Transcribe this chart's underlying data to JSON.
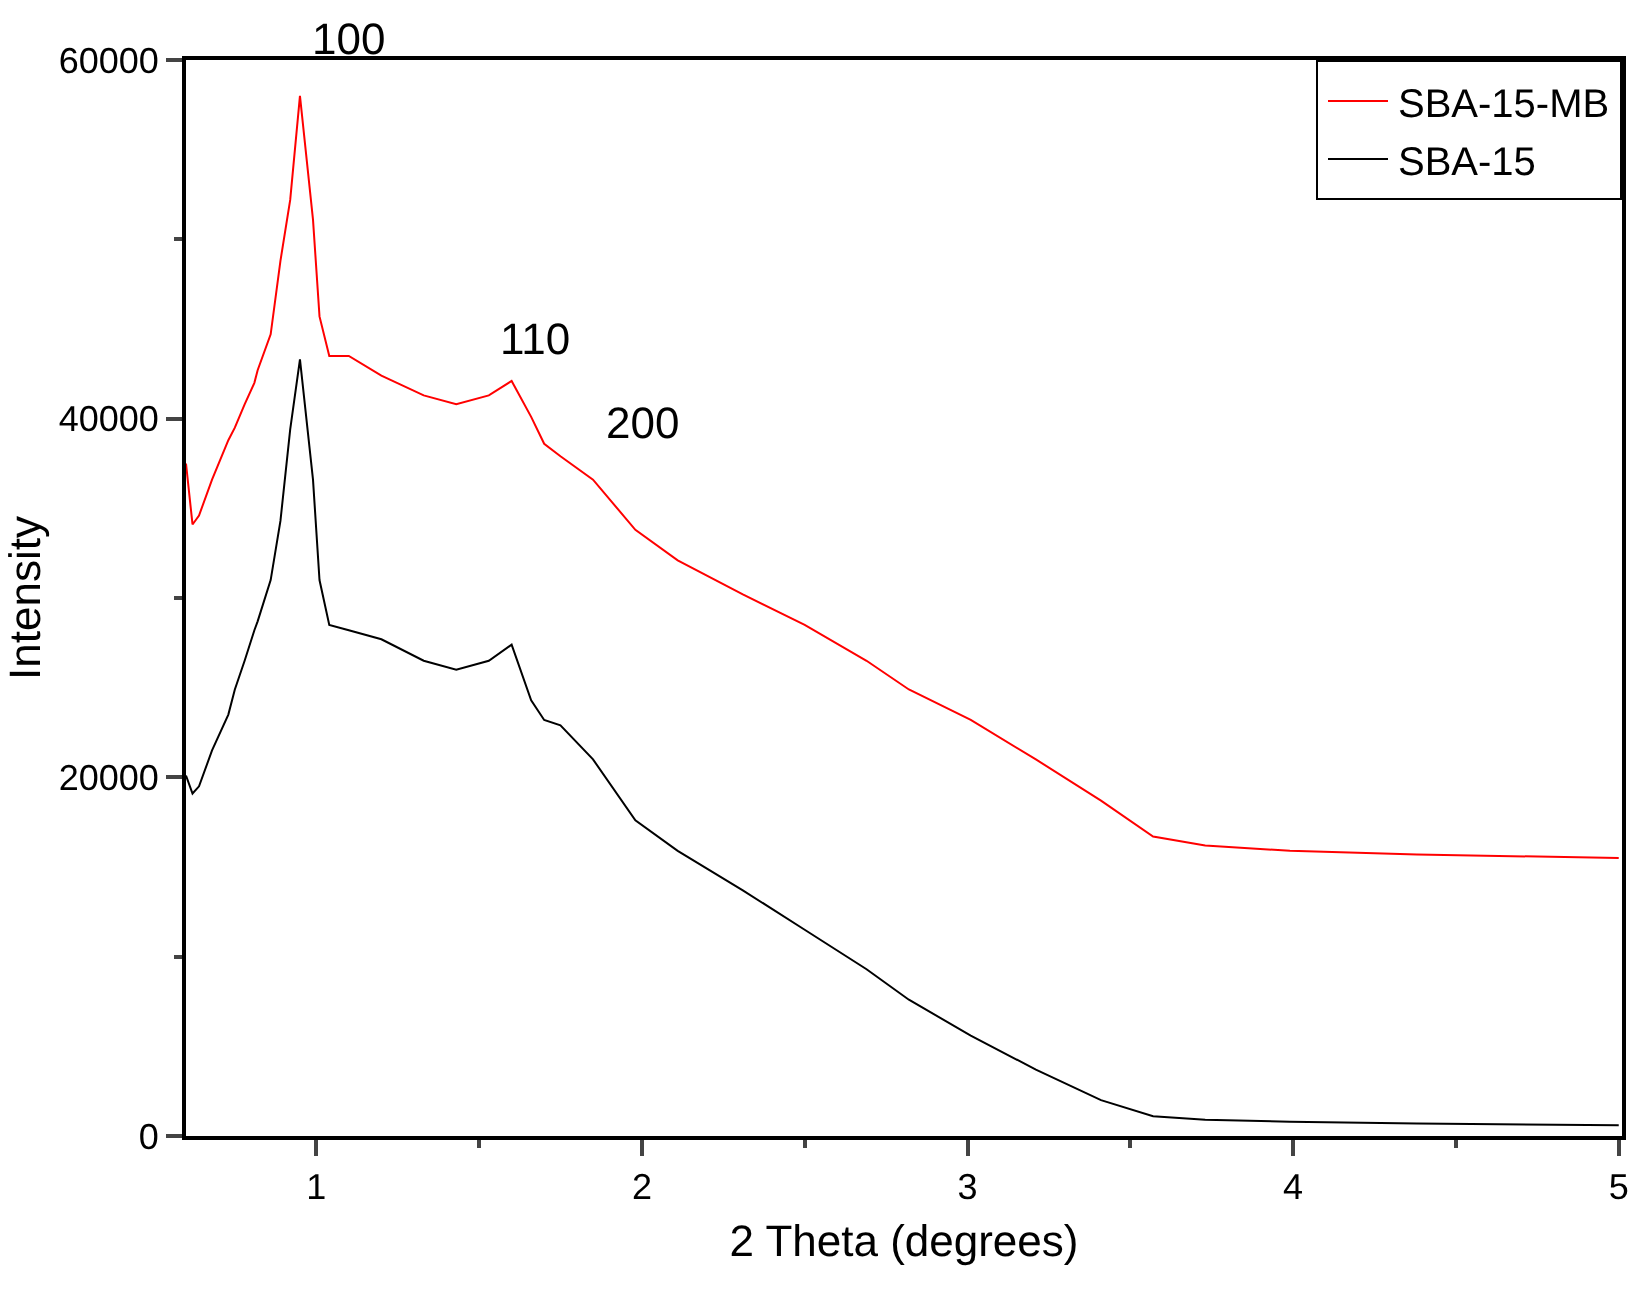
{
  "chart_data": {
    "type": "line",
    "xlabel": "2 Theta (degrees)",
    "ylabel": "Intensity",
    "x": [
      0.6,
      0.62,
      0.64,
      0.68,
      0.73,
      0.75,
      0.78,
      0.81,
      0.82,
      0.86,
      0.89,
      0.92,
      0.95,
      0.99,
      1.01,
      1.04,
      1.1,
      1.2,
      1.33,
      1.43,
      1.53,
      1.6,
      1.66,
      1.7,
      1.75,
      1.85,
      1.98,
      2.11,
      2.31,
      2.5,
      2.69,
      2.82,
      3.01,
      3.21,
      3.41,
      3.57,
      3.73,
      3.99,
      4.38,
      5.0
    ],
    "series": [
      {
        "name": "SBA-15-MB",
        "color": "#ff0000",
        "values": [
          37500,
          34100,
          34600,
          36600,
          38800,
          39500,
          40800,
          42000,
          42700,
          44700,
          48800,
          52200,
          58000,
          51100,
          45700,
          43500,
          43500,
          42400,
          41300,
          40800,
          41300,
          42100,
          40100,
          38600,
          37900,
          36600,
          33800,
          32100,
          30200,
          28500,
          26500,
          24900,
          23200,
          21000,
          18700,
          16700,
          16200,
          15900,
          15700,
          15500
        ]
      },
      {
        "name": "SBA-15",
        "color": "#000000",
        "values": [
          20100,
          19100,
          19500,
          21500,
          23500,
          24900,
          26500,
          28200,
          28700,
          31000,
          34300,
          39400,
          43300,
          36600,
          31000,
          28500,
          28200,
          27700,
          26500,
          26000,
          26500,
          27400,
          24300,
          23200,
          22900,
          21000,
          17600,
          15900,
          13700,
          11500,
          9300,
          7600,
          5600,
          3700,
          2000,
          1100,
          900,
          800,
          700,
          600
        ]
      }
    ],
    "xlim": [
      0.6,
      5.01
    ],
    "xticks": [
      1,
      2,
      3,
      4,
      5
    ],
    "ylim": [
      0,
      60000
    ],
    "yticks": [
      0,
      20000,
      40000,
      60000
    ],
    "annotations": [
      {
        "text": "100",
        "x": 0.95,
        "y": 58000
      },
      {
        "text": "110",
        "x": 1.53,
        "y": 41300
      },
      {
        "text": "200",
        "x": 1.85,
        "y": 36600
      }
    ],
    "legend": "top right",
    "marker": "none",
    "line_style": "solid"
  }
}
